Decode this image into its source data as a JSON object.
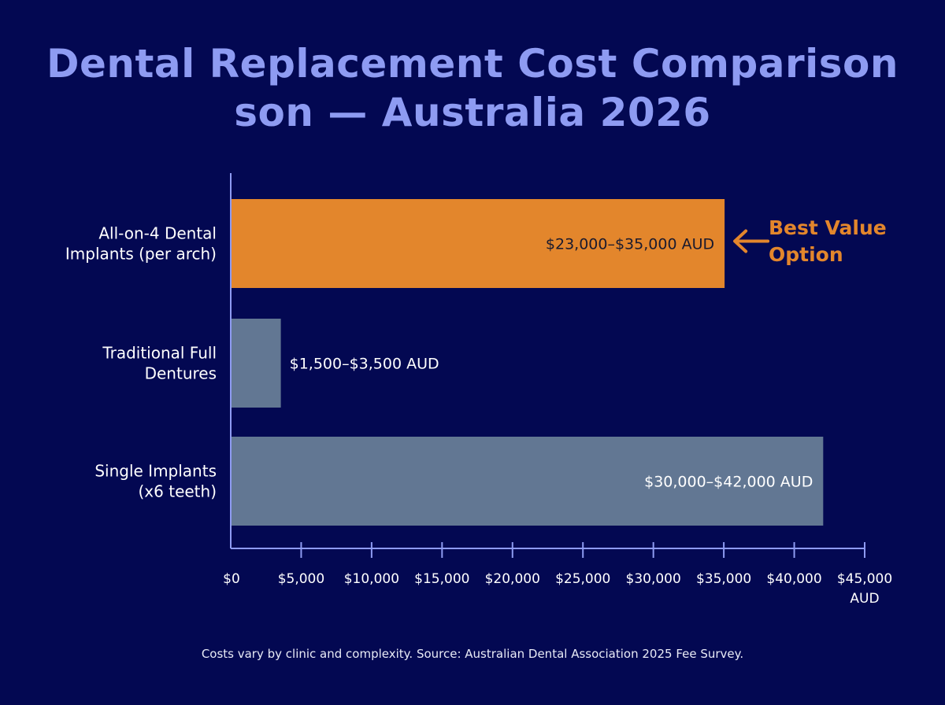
{
  "chart_data": {
    "type": "bar",
    "orientation": "horizontal",
    "title_lines": [
      "Dental Replacement Cost Comparison",
      "son — Australia 2026"
    ],
    "categories": [
      [
        "All-on-4 Dental",
        "Implants (per arch)"
      ],
      [
        "Traditional Full",
        "Dentures"
      ],
      [
        "Single Implants",
        "(x6 teeth)"
      ]
    ],
    "values": [
      35000,
      3500,
      42000
    ],
    "data_labels": [
      "$23,000–$35,000 AUD",
      "$1,500–$3,500 AUD",
      "$30,000–$42,000 AUD"
    ],
    "bar_colors": [
      "#e3862c",
      "#627793",
      "#627793"
    ],
    "xlim": [
      0,
      45000
    ],
    "x_ticks": [
      0,
      5000,
      10000,
      15000,
      20000,
      25000,
      30000,
      35000,
      40000,
      45000
    ],
    "x_tick_labels": [
      "$0",
      "$5,000",
      "$10,000",
      "$15,000",
      "$20,000",
      "$25,000",
      "$30,000",
      "$35,000",
      "$40,000",
      "$45,000"
    ],
    "x_unit": "AUD",
    "grid": false,
    "annotation": {
      "lines": [
        "Best Value",
        "Option"
      ],
      "target_index": 0,
      "color": "#e3862c",
      "icon": "arrow-left-icon"
    },
    "footer": "Costs vary by clinic and complexity. Source: Australian Dental Association 2025 Fee Survey."
  },
  "colors": {
    "background": "#030852",
    "title": "#8e9bf2",
    "axis": "#8e9bf2",
    "text": "#ffffff"
  }
}
